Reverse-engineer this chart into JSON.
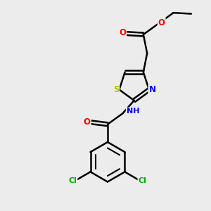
{
  "background_color": "#ececec",
  "bond_color": "#000000",
  "atom_colors": {
    "O": "#ff0000",
    "N": "#0000ff",
    "S": "#bbbb00",
    "Cl": "#00aa00",
    "C": "#000000",
    "H": "#808080"
  },
  "figsize": [
    3.0,
    3.0
  ],
  "dpi": 100
}
